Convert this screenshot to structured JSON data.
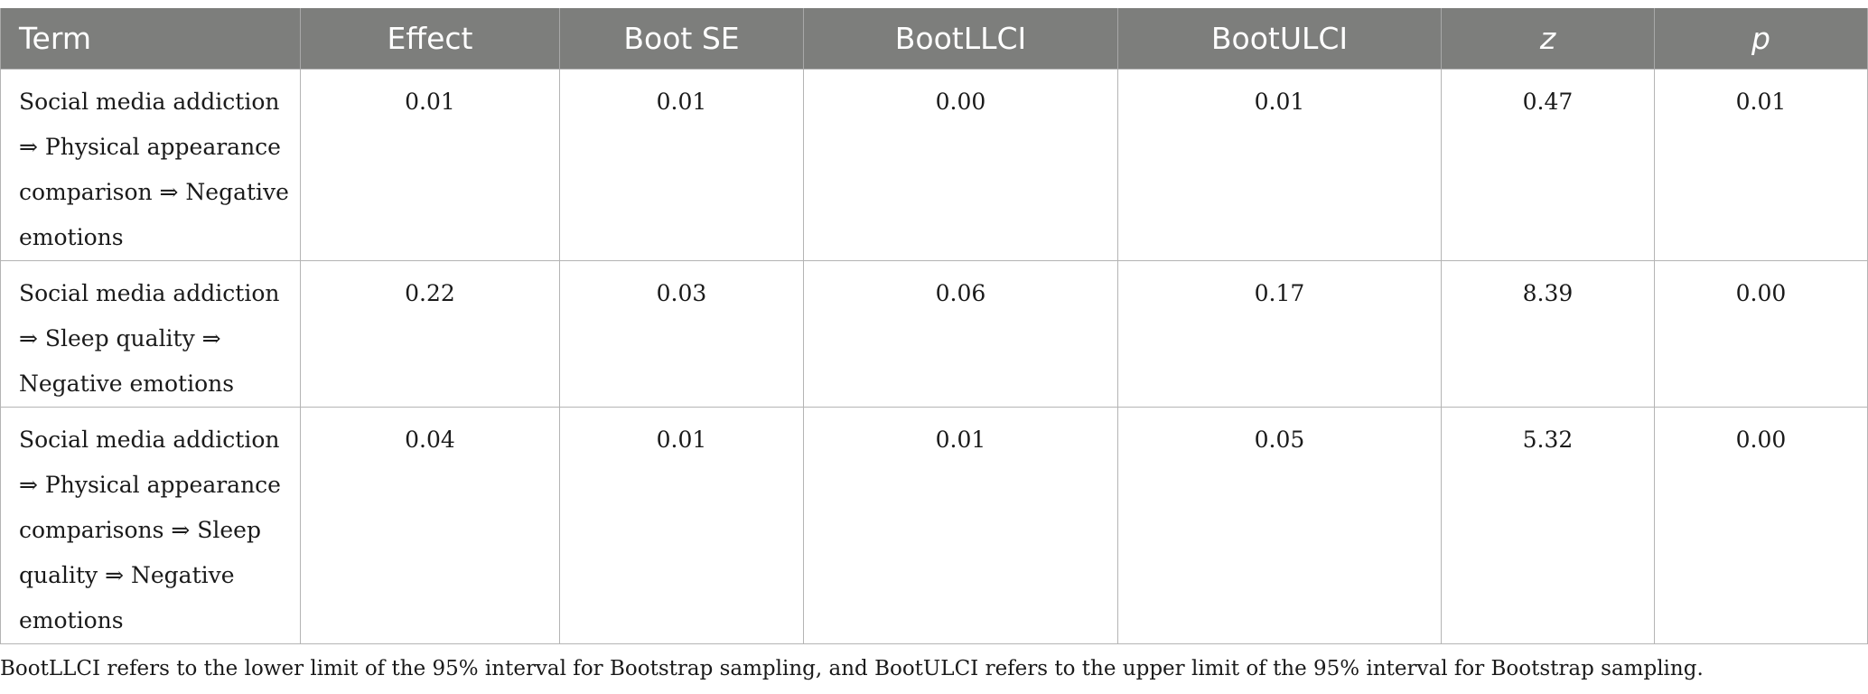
{
  "table": {
    "headers": [
      "Term",
      "Effect",
      "Boot SE",
      "BootLLCI",
      "BootULCI",
      "z",
      "p"
    ],
    "rows": [
      {
        "term": "Social media addiction ⇒ Physical appearance comparison ⇒ Negative emotions",
        "effect": "0.01",
        "boot_se": "0.01",
        "bootllci": "0.00",
        "bootulci": "0.01",
        "z": "0.47",
        "p": "0.01"
      },
      {
        "term": "Social media addiction ⇒ Sleep quality ⇒ Negative emotions",
        "effect": "0.22",
        "boot_se": "0.03",
        "bootllci": "0.06",
        "bootulci": "0.17",
        "z": "8.39",
        "p": "0.00"
      },
      {
        "term": "Social media addiction ⇒ Physical appearance comparisons ⇒ Sleep quality ⇒ Negative emotions",
        "effect": "0.04",
        "boot_se": "0.01",
        "bootllci": "0.01",
        "bootulci": "0.05",
        "z": "5.32",
        "p": "0.00"
      }
    ]
  },
  "footnote": "BootLLCI refers to the lower limit of the 95% interval for Bootstrap sampling, and BootULCI refers to the upper limit of the 95% interval for Bootstrap sampling."
}
